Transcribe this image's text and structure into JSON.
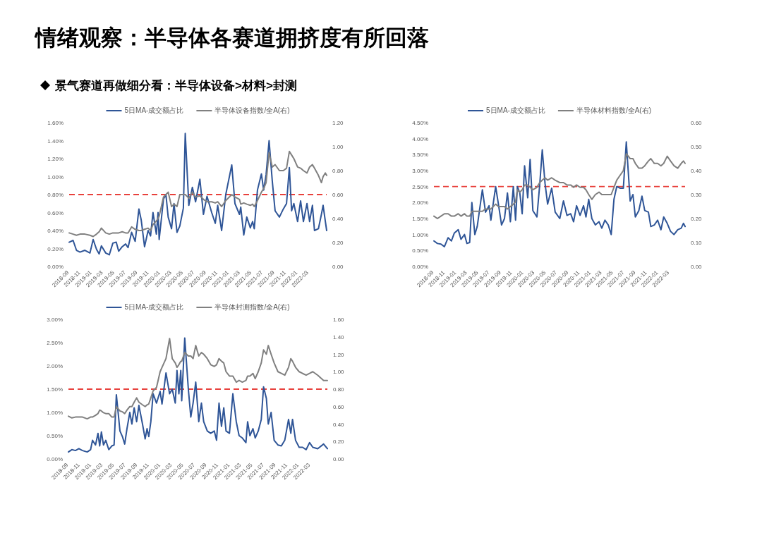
{
  "chart_data": [
    {
      "type": "line",
      "title": "情绪观察：半导体各赛道拥挤度有所回落",
      "subtitle": "景气赛道再做细分看：半导体设备>材料>封测",
      "legend": "top",
      "x": [
        "2018-09-01",
        "2018-09-22",
        "2018-10-10",
        "2018-10-29",
        "2018-11-24",
        "2018-12-21",
        "2019-01-07",
        "2019-01-25",
        "2019-02-08",
        "2019-02-20",
        "2019-03-15",
        "2019-04-03",
        "2019-04-22",
        "2019-05-10",
        "2019-05-23",
        "2019-06-11",
        "2019-06-29",
        "2019-07-12",
        "2019-07-31",
        "2019-08-19",
        "2019-09-08",
        "2019-09-20",
        "2019-10-08",
        "2019-10-27",
        "2019-11-09",
        "2019-11-22",
        "2019-12-10",
        "2019-12-19",
        "2019-12-25",
        "2020-01-17",
        "2020-01-30",
        "2020-02-11",
        "2020-02-29",
        "2020-03-13",
        "2020-03-29",
        "2020-04-13",
        "2020-05-02",
        "2020-05-12",
        "2020-05-31",
        "2020-06-19",
        "2020-07-06",
        "2020-07-29",
        "2020-08-17",
        "2020-09-05",
        "2020-09-30",
        "2020-10-19",
        "2020-11-01",
        "2020-11-22",
        "2020-12-14",
        "2021-01-15",
        "2021-02-01",
        "2021-02-25",
        "2021-03-04",
        "2021-03-20",
        "2021-04-05",
        "2021-04-24",
        "2021-05-06",
        "2021-05-15",
        "2021-06-01",
        "2021-06-22",
        "2021-07-04",
        "2021-07-17",
        "2021-08-02",
        "2021-08-19",
        "2021-09-03",
        "2021-09-26",
        "2021-10-17",
        "2021-11-03",
        "2021-11-18",
        "2021-11-30",
        "2021-12-12",
        "2022-01-01",
        "2022-01-17",
        "2022-02-01",
        "2022-02-20",
        "2022-03-06",
        "2022-03-21",
        "2022-04-01",
        "2022-04-22",
        "2022-05-08",
        "2022-05-17",
        "2022-05-29",
        "2022-06-05"
      ],
      "xlim": [
        "2018-09-01",
        "2022-06-05"
      ],
      "xticks": [
        "2018-09",
        "2018-11",
        "2019-01",
        "2019-03",
        "2019-05",
        "2019-07",
        "2019-09",
        "2019-11",
        "2020-01",
        "2020-03",
        "2020-05",
        "2020-07",
        "2020-09",
        "2020-11",
        "2021-01",
        "2021-03",
        "2021-05",
        "2021-07",
        "2021-09",
        "2021-11",
        "2022-01",
        "2022-03"
      ],
      "ylim": [
        0,
        1.6
      ],
      "yticks": [
        {
          "value": 0,
          "label": "0.00%"
        },
        {
          "value": 0.2,
          "label": "0.20%"
        },
        {
          "value": 0.4,
          "label": "0.40%"
        },
        {
          "value": 0.6,
          "label": "0.60%"
        },
        {
          "value": 0.8,
          "label": "0.80%"
        },
        {
          "value": 1.0,
          "label": "1.00%"
        },
        {
          "value": 1.2,
          "label": "1.20%"
        },
        {
          "value": 1.4,
          "label": "1.40%"
        },
        {
          "value": 1.6,
          "label": "1.60%"
        }
      ],
      "y2lim": [
        0,
        1.2
      ],
      "y2ticks": [
        {
          "value": 0,
          "label": "0.00"
        },
        {
          "value": 0.2,
          "label": "0.20"
        },
        {
          "value": 0.4,
          "label": "0.40"
        },
        {
          "value": 0.6,
          "label": "0.60"
        },
        {
          "value": 0.8,
          "label": "0.80"
        },
        {
          "value": 1.0,
          "label": "1.00"
        },
        {
          "value": 1.2,
          "label": "1.20"
        }
      ],
      "ref_lines": [
        {
          "axis": "y",
          "value": 0.8,
          "color": "#e8413c",
          "line_style": "dashed"
        }
      ],
      "series": [
        {
          "name": "5日MA-成交额占比",
          "color": "#2f5597",
          "values": [
            0.27,
            0.29,
            0.18,
            0.16,
            0.18,
            0.15,
            0.3,
            0.19,
            0.14,
            0.23,
            0.15,
            0.13,
            0.26,
            0.27,
            0.17,
            0.22,
            0.25,
            0.21,
            0.38,
            0.28,
            0.64,
            0.52,
            0.22,
            0.4,
            0.34,
            0.6,
            0.36,
            0.6,
            0.3,
            0.75,
            0.8,
            0.55,
            0.42,
            0.7,
            0.38,
            0.45,
            0.65,
            1.48,
            0.68,
            0.88,
            0.72,
            0.97,
            0.58,
            0.78,
            0.6,
            0.48,
            0.68,
            0.4,
            0.8,
            1.13,
            0.7,
            0.58,
            0.66,
            0.35,
            0.55,
            0.43,
            0.5,
            0.42,
            0.85,
            1.03,
            0.85,
            1.02,
            1.4,
            0.95,
            0.62,
            0.55,
            0.64,
            0.7,
            1.1,
            0.62,
            0.7,
            0.5,
            0.73,
            0.5,
            0.7,
            0.5,
            0.68,
            0.4,
            0.42,
            0.58,
            0.68,
            0.5,
            0.4
          ]
        },
        {
          "name": "半导体设备指数/全A(右)",
          "color": "#808080",
          "axis": "y2",
          "values": [
            0.28,
            0.27,
            0.26,
            0.27,
            0.27,
            0.26,
            0.25,
            0.27,
            0.29,
            0.32,
            0.28,
            0.27,
            0.28,
            0.28,
            0.28,
            0.29,
            0.28,
            0.28,
            0.33,
            0.31,
            0.3,
            0.3,
            0.31,
            0.32,
            0.3,
            0.35,
            0.38,
            0.4,
            0.42,
            0.58,
            0.6,
            0.62,
            0.5,
            0.52,
            0.5,
            0.6,
            0.6,
            0.6,
            0.57,
            0.62,
            0.58,
            0.59,
            0.56,
            0.54,
            0.54,
            0.53,
            0.54,
            0.5,
            0.55,
            0.6,
            0.58,
            0.56,
            0.52,
            0.53,
            0.52,
            0.51,
            0.52,
            0.5,
            0.55,
            0.62,
            0.65,
            0.7,
            0.95,
            0.83,
            0.85,
            0.8,
            0.8,
            0.82,
            0.96,
            0.93,
            0.9,
            0.83,
            0.82,
            0.8,
            0.78,
            0.83,
            0.85,
            0.82,
            0.76,
            0.7,
            0.75,
            0.78,
            0.76
          ]
        }
      ]
    },
    {
      "type": "line",
      "legend": "top",
      "x": [
        "2018-09-01",
        "2018-09-20",
        "2018-10-09",
        "2018-10-28",
        "2018-11-17",
        "2018-12-05",
        "2018-12-21",
        "2019-01-11",
        "2019-01-26",
        "2019-02-14",
        "2019-02-27",
        "2019-03-14",
        "2019-03-26",
        "2019-04-11",
        "2019-04-24",
        "2019-05-22",
        "2019-06-08",
        "2019-06-27",
        "2019-07-07",
        "2019-08-02",
        "2019-08-17",
        "2019-09-03",
        "2019-09-19",
        "2019-10-05",
        "2019-10-21",
        "2019-11-06",
        "2019-11-18",
        "2019-11-28",
        "2019-12-11",
        "2019-12-24",
        "2020-01-06",
        "2020-01-23",
        "2020-02-05",
        "2020-02-20",
        "2020-03-13",
        "2020-03-28",
        "2020-04-11",
        "2020-04-26",
        "2020-05-10",
        "2020-06-01",
        "2020-06-20",
        "2020-07-15",
        "2020-08-04",
        "2020-08-23",
        "2020-09-12",
        "2020-09-28",
        "2020-10-14",
        "2020-11-02",
        "2020-11-21",
        "2020-12-04",
        "2020-12-19",
        "2021-01-05",
        "2021-01-24",
        "2021-02-13",
        "2021-02-28",
        "2021-03-17",
        "2021-04-04",
        "2021-04-20",
        "2021-05-05",
        "2021-05-20",
        "2021-06-07",
        "2021-06-25",
        "2021-07-11",
        "2021-08-01",
        "2021-08-16",
        "2021-08-29",
        "2021-09-17",
        "2021-10-04",
        "2021-10-19",
        "2021-11-08",
        "2021-11-21",
        "2021-12-10",
        "2021-12-28",
        "2022-01-15",
        "2022-01-30",
        "2022-02-18",
        "2022-03-08",
        "2022-03-27",
        "2022-04-16",
        "2022-05-05",
        "2022-05-17",
        "2022-05-26"
      ],
      "xlim": [
        "2018-09-01",
        "2022-05-26"
      ],
      "xticks": [
        "2018-09",
        "2018-11",
        "2019-01",
        "2019-03",
        "2019-05",
        "2019-07",
        "2019-09",
        "2019-11",
        "2020-01",
        "2020-03",
        "2020-05",
        "2020-07",
        "2020-09",
        "2020-11",
        "2021-01",
        "2021-03",
        "2021-05",
        "2021-07",
        "2021-09",
        "2021-11",
        "2022-01",
        "2022-03"
      ],
      "ylim": [
        0,
        4.5
      ],
      "yticks": [
        {
          "value": 0,
          "label": "0.00%"
        },
        {
          "value": 0.5,
          "label": "0.50%"
        },
        {
          "value": 1.0,
          "label": "1.00%"
        },
        {
          "value": 1.5,
          "label": "1.50%"
        },
        {
          "value": 2.0,
          "label": "2.00%"
        },
        {
          "value": 2.5,
          "label": "2.50%"
        },
        {
          "value": 3.0,
          "label": "3.00%"
        },
        {
          "value": 3.5,
          "label": "3.50%"
        },
        {
          "value": 4.0,
          "label": "4.00%"
        },
        {
          "value": 4.5,
          "label": "4.50%"
        }
      ],
      "y2lim": [
        0,
        0.6
      ],
      "y2ticks": [
        {
          "value": 0,
          "label": "0.00"
        },
        {
          "value": 0.1,
          "label": "0.10"
        },
        {
          "value": 0.2,
          "label": "0.20"
        },
        {
          "value": 0.3,
          "label": "0.30"
        },
        {
          "value": 0.4,
          "label": "0.40"
        },
        {
          "value": 0.5,
          "label": "0.50"
        },
        {
          "value": 0.6,
          "label": "0.60"
        }
      ],
      "ref_lines": [
        {
          "axis": "y",
          "value": 2.5,
          "color": "#e8413c",
          "line_style": "dashed"
        }
      ],
      "series": [
        {
          "name": "5日MA-成交额占比",
          "color": "#2f5597",
          "values": [
            0.8,
            0.72,
            0.7,
            0.62,
            0.9,
            0.8,
            1.05,
            1.15,
            0.85,
            1.0,
            0.72,
            0.75,
            2.0,
            1.0,
            1.25,
            2.4,
            1.7,
            1.9,
            1.45,
            2.5,
            1.95,
            1.3,
            1.5,
            2.3,
            1.4,
            2.5,
            1.45,
            2.5,
            2.3,
            1.65,
            3.15,
            2.15,
            3.35,
            1.75,
            1.55,
            2.55,
            3.65,
            2.6,
            1.95,
            2.45,
            1.7,
            1.5,
            2.05,
            1.6,
            1.65,
            1.4,
            1.9,
            1.6,
            1.9,
            1.55,
            2.1,
            1.5,
            1.3,
            1.4,
            1.2,
            1.45,
            1.3,
            1.0,
            2.1,
            2.5,
            2.45,
            2.45,
            3.9,
            2.05,
            2.25,
            1.55,
            1.75,
            2.2,
            1.75,
            1.7,
            1.25,
            1.3,
            1.45,
            1.15,
            1.55,
            1.35,
            1.1,
            1.0,
            1.15,
            1.2,
            1.35,
            1.25
          ]
        },
        {
          "name": "半导体材料指数/全A(右)",
          "color": "#808080",
          "axis": "y2",
          "values": [
            0.21,
            0.2,
            0.21,
            0.22,
            0.22,
            0.21,
            0.21,
            0.22,
            0.21,
            0.22,
            0.21,
            0.21,
            0.23,
            0.23,
            0.23,
            0.23,
            0.24,
            0.24,
            0.24,
            0.26,
            0.25,
            0.25,
            0.25,
            0.24,
            0.25,
            0.26,
            0.27,
            0.32,
            0.31,
            0.32,
            0.34,
            0.34,
            0.33,
            0.32,
            0.33,
            0.35,
            0.36,
            0.37,
            0.36,
            0.37,
            0.36,
            0.35,
            0.35,
            0.34,
            0.34,
            0.33,
            0.34,
            0.33,
            0.33,
            0.32,
            0.3,
            0.28,
            0.3,
            0.31,
            0.3,
            0.3,
            0.3,
            0.3,
            0.33,
            0.36,
            0.38,
            0.4,
            0.47,
            0.45,
            0.45,
            0.43,
            0.41,
            0.41,
            0.42,
            0.44,
            0.45,
            0.43,
            0.43,
            0.42,
            0.43,
            0.46,
            0.44,
            0.42,
            0.41,
            0.43,
            0.44,
            0.43
          ]
        }
      ]
    },
    {
      "type": "line",
      "legend": "top",
      "x": [
        "2018-09-01",
        "2018-09-19",
        "2018-10-08",
        "2018-10-26",
        "2018-11-14",
        "2018-12-09",
        "2018-12-27",
        "2019-01-06",
        "2019-01-22",
        "2019-02-04",
        "2019-02-13",
        "2019-02-22",
        "2019-03-05",
        "2019-03-17",
        "2019-04-02",
        "2019-04-18",
        "2019-04-30",
        "2019-05-12",
        "2019-05-31",
        "2019-06-13",
        "2019-06-25",
        "2019-07-07",
        "2019-07-22",
        "2019-08-02",
        "2019-08-14",
        "2019-08-27",
        "2019-09-08",
        "2019-09-27",
        "2019-10-11",
        "2019-10-21",
        "2019-10-30",
        "2019-11-10",
        "2019-11-22",
        "2019-12-10",
        "2019-12-29",
        "2020-01-08",
        "2020-01-29",
        "2020-02-17",
        "2020-03-02",
        "2020-03-18",
        "2020-03-27",
        "2020-04-06",
        "2020-04-16",
        "2020-04-21",
        "2020-05-07",
        "2020-05-26",
        "2020-06-08",
        "2020-06-20",
        "2020-07-04",
        "2020-07-20",
        "2020-08-03",
        "2020-08-15",
        "2020-09-03",
        "2020-09-21",
        "2020-10-10",
        "2020-10-22",
        "2020-11-04",
        "2020-11-17",
        "2020-11-29",
        "2020-12-11",
        "2020-12-29",
        "2021-01-16",
        "2021-02-03",
        "2021-02-18",
        "2021-03-07",
        "2021-03-26",
        "2021-04-04",
        "2021-04-16",
        "2021-05-02",
        "2021-05-14",
        "2021-05-30",
        "2021-06-15",
        "2021-06-27",
        "2021-07-12",
        "2021-07-22",
        "2021-08-06",
        "2021-08-22",
        "2021-09-11",
        "2021-09-29",
        "2021-10-17",
        "2021-11-06",
        "2021-11-18",
        "2021-11-27",
        "2021-12-13",
        "2022-01-01",
        "2022-01-19",
        "2022-02-07",
        "2022-02-25",
        "2022-03-14",
        "2022-04-09",
        "2022-05-10",
        "2022-05-30"
      ],
      "xlim": [
        "2018-09-01",
        "2022-05-30"
      ],
      "xticks": [
        "2018-09",
        "2018-11",
        "2019-01",
        "2019-03",
        "2019-05",
        "2019-07",
        "2019-09",
        "2019-11",
        "2020-01",
        "2020-03",
        "2020-05",
        "2020-07",
        "2020-09",
        "2020-11",
        "2021-01",
        "2021-03",
        "2021-05",
        "2021-07",
        "2021-09",
        "2021-11",
        "2022-01",
        "2022-03"
      ],
      "ylim": [
        0,
        3.0
      ],
      "yticks": [
        {
          "value": 0,
          "label": "0.00%"
        },
        {
          "value": 0.5,
          "label": "0.50%"
        },
        {
          "value": 1.0,
          "label": "1.00%"
        },
        {
          "value": 1.5,
          "label": "1.50%"
        },
        {
          "value": 2.0,
          "label": "2.00%"
        },
        {
          "value": 2.5,
          "label": "2.50%"
        },
        {
          "value": 3.0,
          "label": "3.00%"
        }
      ],
      "y2lim": [
        0,
        1.6
      ],
      "y2ticks": [
        {
          "value": 0,
          "label": "0.00"
        },
        {
          "value": 0.2,
          "label": "0.20"
        },
        {
          "value": 0.4,
          "label": "0.40"
        },
        {
          "value": 0.6,
          "label": "0.60"
        },
        {
          "value": 0.8,
          "label": "0.80"
        },
        {
          "value": 1.0,
          "label": "1.00"
        },
        {
          "value": 1.2,
          "label": "1.20"
        },
        {
          "value": 1.4,
          "label": "1.40"
        },
        {
          "value": 1.6,
          "label": "1.60"
        }
      ],
      "ref_lines": [
        {
          "axis": "y",
          "value": 1.5,
          "color": "#e8413c",
          "line_style": "dashed"
        }
      ],
      "series": [
        {
          "name": "5日MA-成交额占比",
          "color": "#2f5597",
          "values": [
            0.15,
            0.2,
            0.18,
            0.22,
            0.18,
            0.15,
            0.2,
            0.4,
            0.3,
            0.55,
            0.28,
            0.58,
            0.3,
            0.4,
            0.2,
            0.28,
            0.3,
            1.38,
            0.6,
            0.48,
            0.32,
            0.65,
            1.0,
            0.75,
            1.1,
            0.8,
            1.15,
            0.75,
            0.43,
            0.65,
            0.48,
            0.8,
            1.4,
            1.2,
            1.45,
            1.18,
            1.85,
            1.4,
            1.5,
            1.2,
            1.9,
            1.4,
            1.9,
            1.25,
            2.6,
            1.5,
            0.9,
            1.2,
            1.65,
            0.8,
            1.2,
            0.8,
            0.6,
            0.55,
            0.6,
            0.4,
            1.2,
            0.7,
            1.1,
            0.6,
            0.55,
            1.4,
            0.8,
            0.5,
            0.45,
            0.35,
            0.8,
            0.5,
            0.65,
            0.45,
            0.6,
            0.85,
            1.55,
            1.3,
            0.75,
            1.0,
            0.4,
            0.3,
            0.28,
            0.4,
            0.85,
            0.55,
            0.85,
            0.4,
            0.25,
            0.25,
            0.2,
            0.35,
            0.25,
            0.22,
            0.32,
            0.22
          ]
        },
        {
          "name": "半导体封测指数/全A(右)",
          "color": "#808080",
          "axis": "y2",
          "values": [
            0.49,
            0.47,
            0.48,
            0.48,
            0.48,
            0.46,
            0.48,
            0.48,
            0.5,
            0.52,
            0.56,
            0.55,
            0.53,
            0.52,
            0.52,
            0.48,
            0.48,
            0.6,
            0.55,
            0.54,
            0.52,
            0.56,
            0.6,
            0.6,
            0.65,
            0.7,
            0.65,
            0.62,
            0.6,
            0.62,
            0.63,
            0.7,
            0.78,
            0.82,
            1.0,
            1.05,
            1.15,
            1.38,
            1.15,
            1.1,
            1.05,
            1.08,
            1.12,
            1.12,
            1.22,
            1.18,
            1.18,
            1.15,
            1.3,
            1.18,
            1.22,
            1.2,
            1.15,
            1.08,
            1.06,
            1.08,
            1.15,
            1.12,
            1.1,
            1.0,
            0.95,
            0.95,
            0.88,
            0.9,
            0.88,
            0.9,
            0.95,
            0.95,
            0.98,
            0.92,
            1.0,
            1.1,
            1.25,
            1.2,
            1.3,
            1.2,
            1.1,
            1.0,
            0.98,
            0.96,
            1.05,
            1.15,
            1.12,
            1.05,
            1.0,
            0.98,
            0.96,
            0.98,
            1.0,
            0.96,
            0.9,
            0.9
          ]
        }
      ]
    }
  ]
}
